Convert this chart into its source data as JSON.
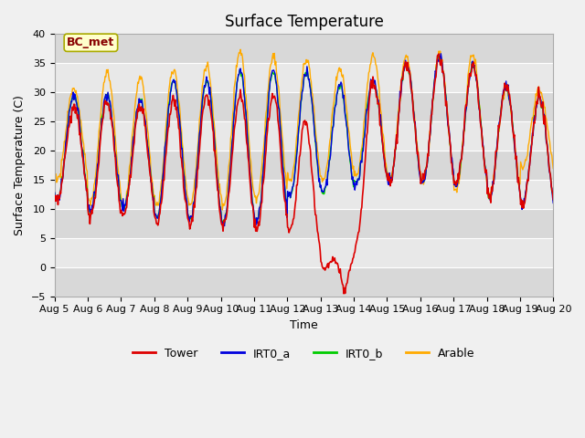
{
  "title": "Surface Temperature",
  "ylabel": "Surface Temperature (C)",
  "xlabel": "Time",
  "annotation_label": "BC_met",
  "ylim": [
    -5,
    40
  ],
  "xlim": [
    0,
    15
  ],
  "x_tick_labels": [
    "Aug 5",
    "Aug 6",
    "Aug 7",
    "Aug 8",
    "Aug 9",
    "Aug 10",
    "Aug 11",
    "Aug 12",
    "Aug 13",
    "Aug 14",
    "Aug 15",
    "Aug 16",
    "Aug 17",
    "Aug 18",
    "Aug 19",
    "Aug 20"
  ],
  "series_colors": {
    "Tower": "#dd0000",
    "IRT0_a": "#0000dd",
    "IRT0_b": "#00cc00",
    "Arable": "#ffaa00"
  },
  "bg_bands": [
    {
      "ymin": -5,
      "ymax": 0,
      "color": "#d8d8d8"
    },
    {
      "ymin": 0,
      "ymax": 5,
      "color": "#e8e8e8"
    },
    {
      "ymin": 5,
      "ymax": 10,
      "color": "#d8d8d8"
    },
    {
      "ymin": 10,
      "ymax": 15,
      "color": "#e8e8e8"
    },
    {
      "ymin": 15,
      "ymax": 20,
      "color": "#d8d8d8"
    },
    {
      "ymin": 20,
      "ymax": 25,
      "color": "#e8e8e8"
    },
    {
      "ymin": 25,
      "ymax": 30,
      "color": "#d8d8d8"
    },
    {
      "ymin": 30,
      "ymax": 35,
      "color": "#e8e8e8"
    },
    {
      "ymin": 35,
      "ymax": 40,
      "color": "#d8d8d8"
    }
  ],
  "fig_bg": "#f0f0f0",
  "title_fontsize": 12,
  "axis_fontsize": 9,
  "tick_fontsize": 8
}
